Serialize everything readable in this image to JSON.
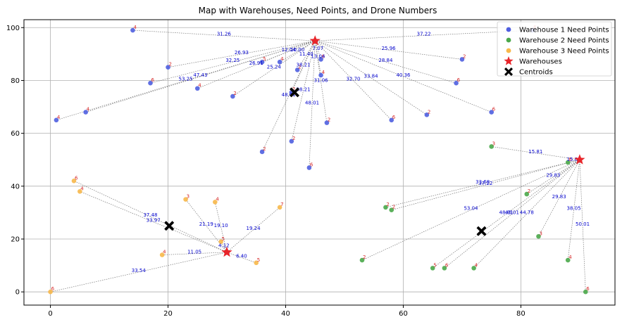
{
  "chart_data": {
    "type": "scatter",
    "title": "Map with Warehouses, Need Points, and Drone Numbers",
    "xlabel": "",
    "ylabel": "",
    "xlim": [
      -4.5,
      96
    ],
    "ylim": [
      -5,
      103
    ],
    "xticks": [
      0,
      20,
      40,
      60,
      80
    ],
    "yticks": [
      0,
      20,
      40,
      60,
      80,
      100
    ],
    "grid": true,
    "legend_position": "top-right",
    "colors": {
      "warehouse1": "#4f5fe0",
      "warehouse2": "#4aa84a",
      "warehouse3": "#f7b84a",
      "warehouse_marker": "#e8252a",
      "centroid": "#000000",
      "distance_text": "#0000cc",
      "drone_text": "#d62728"
    },
    "legend": [
      {
        "label": "Warehouse 1 Need Points",
        "marker": "circle",
        "color": "#4f5fe0"
      },
      {
        "label": "Warehouse 2 Need Points",
        "marker": "circle",
        "color": "#4aa84a"
      },
      {
        "label": "Warehouse 3 Need Points",
        "marker": "circle",
        "color": "#f7b84a"
      },
      {
        "label": "Warehouses",
        "marker": "star",
        "color": "#e8252a"
      },
      {
        "label": "Centroids",
        "marker": "cross",
        "color": "#000000"
      }
    ],
    "warehouses": [
      {
        "x": 45,
        "y": 95
      },
      {
        "x": 90,
        "y": 50
      },
      {
        "x": 30,
        "y": 15
      }
    ],
    "centroids": [
      {
        "x": 41.5,
        "y": 75.5
      },
      {
        "x": 73.3,
        "y": 23
      },
      {
        "x": 20.2,
        "y": 25
      }
    ],
    "series": [
      {
        "name": "Warehouse 1 Need Points",
        "warehouse": 0,
        "points": [
          {
            "x": 14,
            "y": 99,
            "drones": "4",
            "dist": "31.26"
          },
          {
            "x": 20,
            "y": 85,
            "drones": "2",
            "dist": "26.93"
          },
          {
            "x": 17,
            "y": 79,
            "drones": "6",
            "dist": "32.25"
          },
          {
            "x": 25,
            "y": 77,
            "drones": "4",
            "dist": "26.91"
          },
          {
            "x": 1,
            "y": 65,
            "drones": "4",
            "dist": "53.25"
          },
          {
            "x": 6,
            "y": 68,
            "drones": "4",
            "dist": "47.43"
          },
          {
            "x": 31,
            "y": 74,
            "drones": "2",
            "dist": "25.24"
          },
          {
            "x": 36,
            "y": 87,
            "drones": "5",
            "dist": "12.04"
          },
          {
            "x": 39,
            "y": 87,
            "drones": "4",
            "dist": "10.00"
          },
          {
            "x": 42,
            "y": 84,
            "drones": "2",
            "dist": "11.40"
          },
          {
            "x": 41,
            "y": 75.5,
            "drones": "7",
            "dist": "38.21"
          },
          {
            "x": 46,
            "y": 88,
            "drones": "6",
            "dist": "7.07"
          },
          {
            "x": 46,
            "y": 82,
            "drones": "4",
            "dist": "13.04"
          },
          {
            "x": 47,
            "y": 64,
            "drones": "2",
            "dist": "31.06"
          },
          {
            "x": 36,
            "y": 53,
            "drones": "2",
            "dist": "48.01"
          },
          {
            "x": 41,
            "y": 57,
            "drones": "2",
            "dist": "38.21"
          },
          {
            "x": 44,
            "y": 47,
            "drones": "6",
            "dist": "48.01"
          },
          {
            "x": 58,
            "y": 65,
            "drones": "6",
            "dist": "32.70"
          },
          {
            "x": 64,
            "y": 67,
            "drones": "2",
            "dist": "33.84"
          },
          {
            "x": 69,
            "y": 79,
            "drones": "6",
            "dist": "28.84"
          },
          {
            "x": 70,
            "y": 88,
            "drones": "2",
            "dist": "25.96"
          },
          {
            "x": 75,
            "y": 68,
            "drones": "6",
            "dist": "40.36"
          },
          {
            "x": 82,
            "y": 99,
            "drones": "6",
            "dist": "37.22"
          }
        ]
      },
      {
        "name": "Warehouse 2 Need Points",
        "warehouse": 1,
        "points": [
          {
            "x": 75,
            "y": 55,
            "drones": "3",
            "dist": "15.81"
          },
          {
            "x": 88,
            "y": 49,
            "drones": "6",
            "dist": "15.81"
          },
          {
            "x": 57,
            "y": 32,
            "drones": "2",
            "dist": "33.68"
          },
          {
            "x": 58,
            "y": 31,
            "drones": "2",
            "dist": "37.22"
          },
          {
            "x": 81,
            "y": 37,
            "drones": "2",
            "dist": "29.83"
          },
          {
            "x": 53,
            "y": 12,
            "drones": "2",
            "dist": "53.04"
          },
          {
            "x": 65,
            "y": 9,
            "drones": "5",
            "dist": "48.01"
          },
          {
            "x": 67,
            "y": 9,
            "drones": "6",
            "dist": "40.01"
          },
          {
            "x": 72,
            "y": 9,
            "drones": "4",
            "dist": "44.78"
          },
          {
            "x": 83,
            "y": 21,
            "drones": "3",
            "dist": "29.83"
          },
          {
            "x": 88,
            "y": 12,
            "drones": "4",
            "dist": "38.05"
          },
          {
            "x": 91,
            "y": 0,
            "drones": "6",
            "dist": "50.01"
          }
        ]
      },
      {
        "name": "Warehouse 3 Need Points",
        "warehouse": 2,
        "points": [
          {
            "x": 4,
            "y": 42,
            "drones": "6",
            "dist": "37.48"
          },
          {
            "x": 5,
            "y": 38,
            "drones": "4",
            "dist": "33.97"
          },
          {
            "x": 23,
            "y": 35,
            "drones": "3",
            "dist": "21.19"
          },
          {
            "x": 28,
            "y": 34,
            "drones": "4",
            "dist": "19.10"
          },
          {
            "x": 29,
            "y": 19,
            "drones": "5",
            "dist": "4.12"
          },
          {
            "x": 19,
            "y": 14,
            "drones": "4",
            "dist": "11.05"
          },
          {
            "x": 35,
            "y": 11,
            "drones": "5",
            "dist": "6.40"
          },
          {
            "x": 39,
            "y": 32,
            "drones": "7",
            "dist": "19.24"
          },
          {
            "x": 0,
            "y": 0,
            "drones": "6",
            "dist": "33.54"
          }
        ]
      }
    ]
  }
}
